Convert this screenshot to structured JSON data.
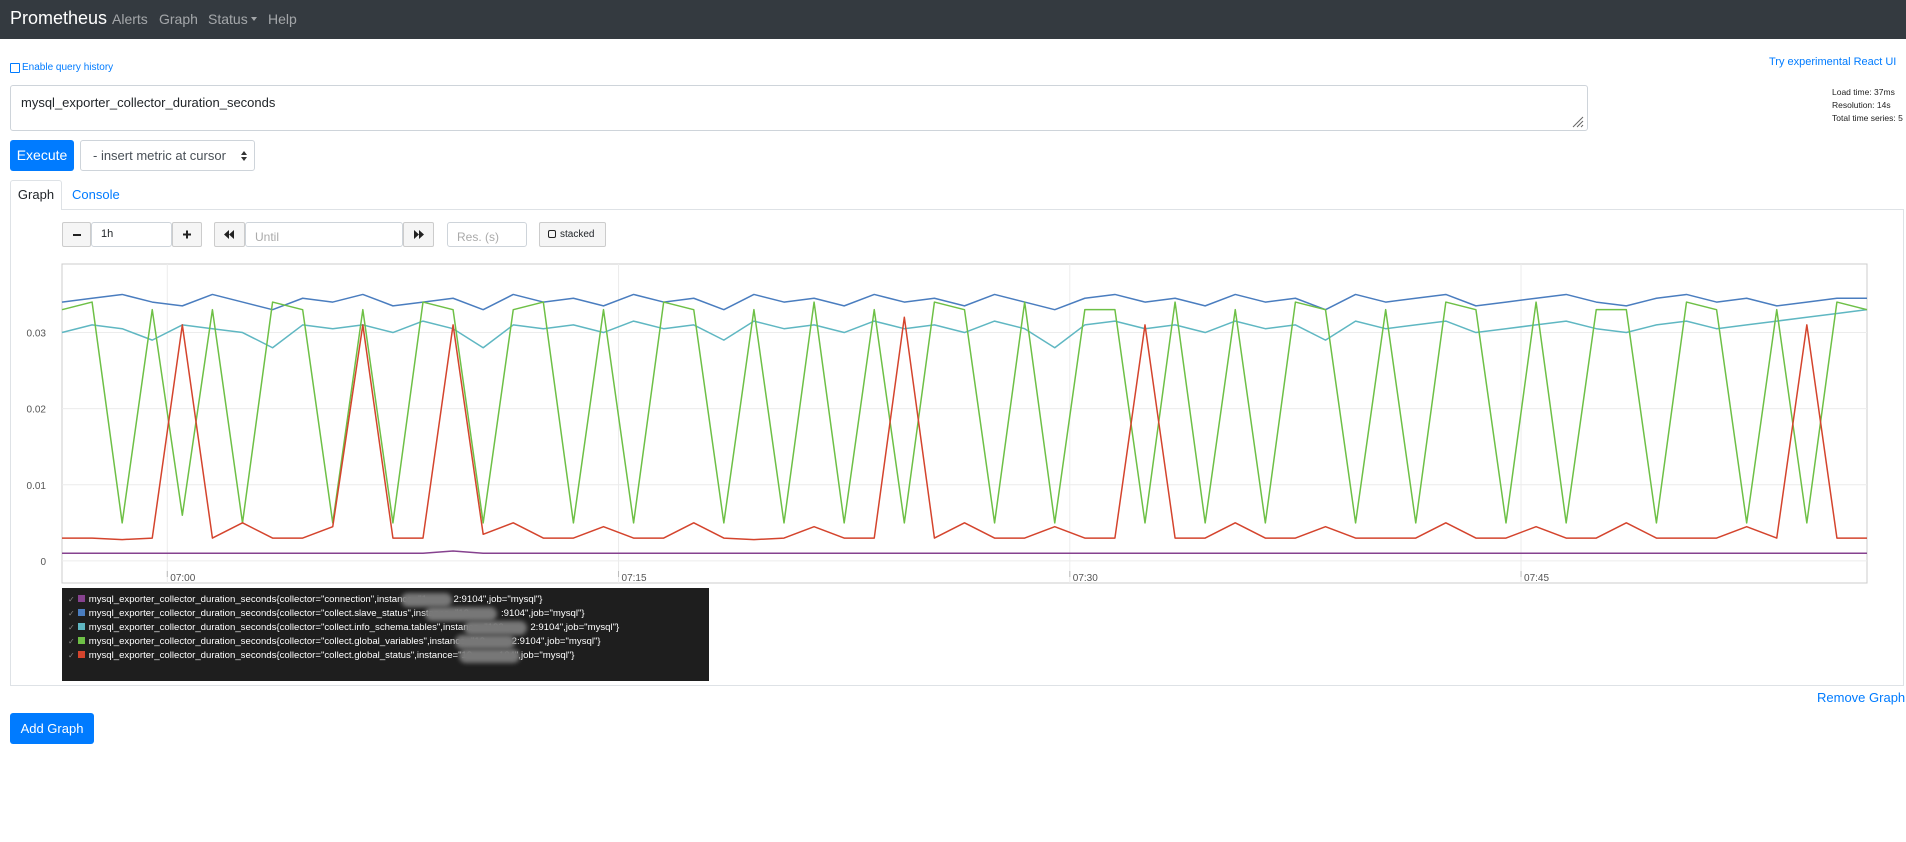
{
  "navbar": {
    "brand": "Prometheus",
    "links": [
      "Alerts",
      "Graph",
      "Status",
      "Help"
    ]
  },
  "query_history_toggle": "Enable query history",
  "react_ui_link": "Try experimental React UI",
  "expression": "mysql_exporter_collector_duration_seconds",
  "execute_button": "Execute",
  "metric_select": "- insert metric at cursor",
  "stats": {
    "load_time": "Load time: 37ms",
    "resolution": "Resolution: 14s",
    "total_series": "Total time series: 5"
  },
  "tabs": [
    "Graph",
    "Console"
  ],
  "controls": {
    "range": "1h",
    "until_placeholder": "Until",
    "resolution_placeholder": "Res. (s)",
    "stacked": "stacked"
  },
  "chart_data": {
    "type": "line",
    "x": [
      -3.5,
      -2.5,
      -1.5,
      -0.5,
      0.5,
      1.5,
      2.5,
      3.5,
      4.5,
      5.5,
      6.5,
      7.5,
      8.5,
      9.5,
      10.5,
      11.5,
      12.5,
      13.5,
      14.5,
      15.5,
      16.5,
      17.5,
      18.5,
      19.5,
      20.5,
      21.5,
      22.5,
      23.5,
      24.5,
      25.5,
      26.5,
      27.5,
      28.5,
      29.5,
      30.5,
      31.5,
      32.5,
      33.5,
      34.5,
      35.5,
      36.5,
      37.5,
      38.5,
      39.5,
      40.5,
      41.5,
      42.5,
      43.5,
      44.5,
      45.5,
      46.5,
      47.5,
      48.5,
      49.5,
      50.5,
      51.5,
      52.5,
      53.5,
      54.5,
      55.5,
      56.5
    ],
    "xlim": [
      -3.5,
      56.5
    ],
    "xticks": [
      {
        "value": 0,
        "label": "07:00"
      },
      {
        "value": 15,
        "label": "07:15"
      },
      {
        "value": 30,
        "label": "07:30"
      },
      {
        "value": 45,
        "label": "07:45"
      }
    ],
    "ylim": [
      -0.0029,
      0.039
    ],
    "yticks": [
      0,
      0.01,
      0.02,
      0.03
    ],
    "grid": true,
    "series": [
      {
        "name": "mysql_exporter_collector_duration_seconds{collector=\"connection\",instance=\"1          2:9104\",job=\"mysql\"}",
        "color": "#86428f",
        "values": [
          0.001,
          0.001,
          0.001,
          0.001,
          0.001,
          0.001,
          0.001,
          0.001,
          0.001,
          0.001,
          0.001,
          0.001,
          0.001,
          0.0013,
          0.001,
          0.001,
          0.001,
          0.001,
          0.001,
          0.001,
          0.001,
          0.001,
          0.001,
          0.001,
          0.001,
          0.001,
          0.001,
          0.001,
          0.001,
          0.001,
          0.001,
          0.001,
          0.001,
          0.001,
          0.001,
          0.001,
          0.001,
          0.001,
          0.001,
          0.001,
          0.001,
          0.001,
          0.001,
          0.001,
          0.001,
          0.001,
          0.001,
          0.001,
          0.001,
          0.001,
          0.001,
          0.001,
          0.001,
          0.001,
          0.001,
          0.001,
          0.001,
          0.001,
          0.001,
          0.001,
          0.001
        ]
      },
      {
        "name": "mysql_exporter_collector_duration_seconds{collector=\"collect.slave_status\",instance=\"19            :9104\",job=\"mysql\"}",
        "color": "#4a7dbf",
        "values": [
          0.034,
          0.0345,
          0.035,
          0.034,
          0.0335,
          0.035,
          0.034,
          0.033,
          0.0345,
          0.034,
          0.035,
          0.0335,
          0.034,
          0.0345,
          0.033,
          0.035,
          0.034,
          0.0345,
          0.0335,
          0.035,
          0.034,
          0.0345,
          0.033,
          0.035,
          0.034,
          0.0345,
          0.0335,
          0.035,
          0.034,
          0.0345,
          0.0335,
          0.035,
          0.034,
          0.033,
          0.0345,
          0.035,
          0.034,
          0.0345,
          0.0335,
          0.035,
          0.034,
          0.0345,
          0.033,
          0.035,
          0.034,
          0.0345,
          0.035,
          0.0335,
          0.034,
          0.0345,
          0.035,
          0.034,
          0.0335,
          0.0345,
          0.035,
          0.034,
          0.0345,
          0.0335,
          0.034,
          0.0345,
          0.0345
        ]
      },
      {
        "name": "mysql_exporter_collector_duration_seconds{collector=\"collect.info_schema.tables\",instance=\"192          2:9104\",job=\"mysql\"}",
        "color": "#5fb7c2",
        "values": [
          0.03,
          0.031,
          0.0305,
          0.029,
          0.031,
          0.0305,
          0.03,
          0.028,
          0.031,
          0.0305,
          0.031,
          0.03,
          0.0315,
          0.0305,
          0.028,
          0.031,
          0.0305,
          0.031,
          0.03,
          0.0315,
          0.0305,
          0.031,
          0.029,
          0.0315,
          0.0305,
          0.031,
          0.03,
          0.0315,
          0.0305,
          0.031,
          0.03,
          0.0315,
          0.0305,
          0.028,
          0.031,
          0.0315,
          0.0305,
          0.031,
          0.03,
          0.0315,
          0.0305,
          0.031,
          0.029,
          0.0315,
          0.0305,
          0.031,
          0.0315,
          0.03,
          0.0305,
          0.031,
          0.0315,
          0.0305,
          0.03,
          0.031,
          0.0315,
          0.0305,
          0.031,
          0.0315,
          0.032,
          0.0325,
          0.033
        ]
      },
      {
        "name": "mysql_exporter_collector_duration_seconds{collector=\"collect.global_variables\",instance=\"19          2:9104\",job=\"mysql\"}",
        "color": "#6ec046",
        "values": [
          0.033,
          0.034,
          0.005,
          0.033,
          0.006,
          0.033,
          0.005,
          0.034,
          0.033,
          0.005,
          0.033,
          0.005,
          0.034,
          0.033,
          0.005,
          0.033,
          0.034,
          0.005,
          0.033,
          0.005,
          0.034,
          0.033,
          0.005,
          0.033,
          0.005,
          0.034,
          0.005,
          0.033,
          0.005,
          0.034,
          0.033,
          0.005,
          0.034,
          0.005,
          0.033,
          0.033,
          0.005,
          0.034,
          0.005,
          0.033,
          0.005,
          0.034,
          0.033,
          0.005,
          0.033,
          0.005,
          0.034,
          0.033,
          0.005,
          0.034,
          0.005,
          0.033,
          0.033,
          0.005,
          0.034,
          0.033,
          0.005,
          0.033,
          0.005,
          0.034,
          0.033
        ]
      },
      {
        "name": "mysql_exporter_collector_duration_seconds{collector=\"collect.global_status\",instance=\"19          104\",job=\"mysql\"}",
        "color": "#d4442d",
        "values": [
          0.003,
          0.003,
          0.0028,
          0.003,
          0.031,
          0.003,
          0.005,
          0.003,
          0.003,
          0.0045,
          0.031,
          0.003,
          0.003,
          0.031,
          0.0035,
          0.005,
          0.003,
          0.003,
          0.0045,
          0.003,
          0.003,
          0.005,
          0.003,
          0.0028,
          0.003,
          0.0045,
          0.003,
          0.003,
          0.032,
          0.003,
          0.005,
          0.003,
          0.003,
          0.0045,
          0.003,
          0.003,
          0.031,
          0.003,
          0.003,
          0.005,
          0.003,
          0.003,
          0.0045,
          0.003,
          0.003,
          0.003,
          0.005,
          0.003,
          0.003,
          0.0045,
          0.003,
          0.003,
          0.005,
          0.003,
          0.003,
          0.003,
          0.0045,
          0.003,
          0.031,
          0.003,
          0.003
        ]
      }
    ]
  },
  "remove_graph": "Remove Graph",
  "add_graph": "Add Graph"
}
